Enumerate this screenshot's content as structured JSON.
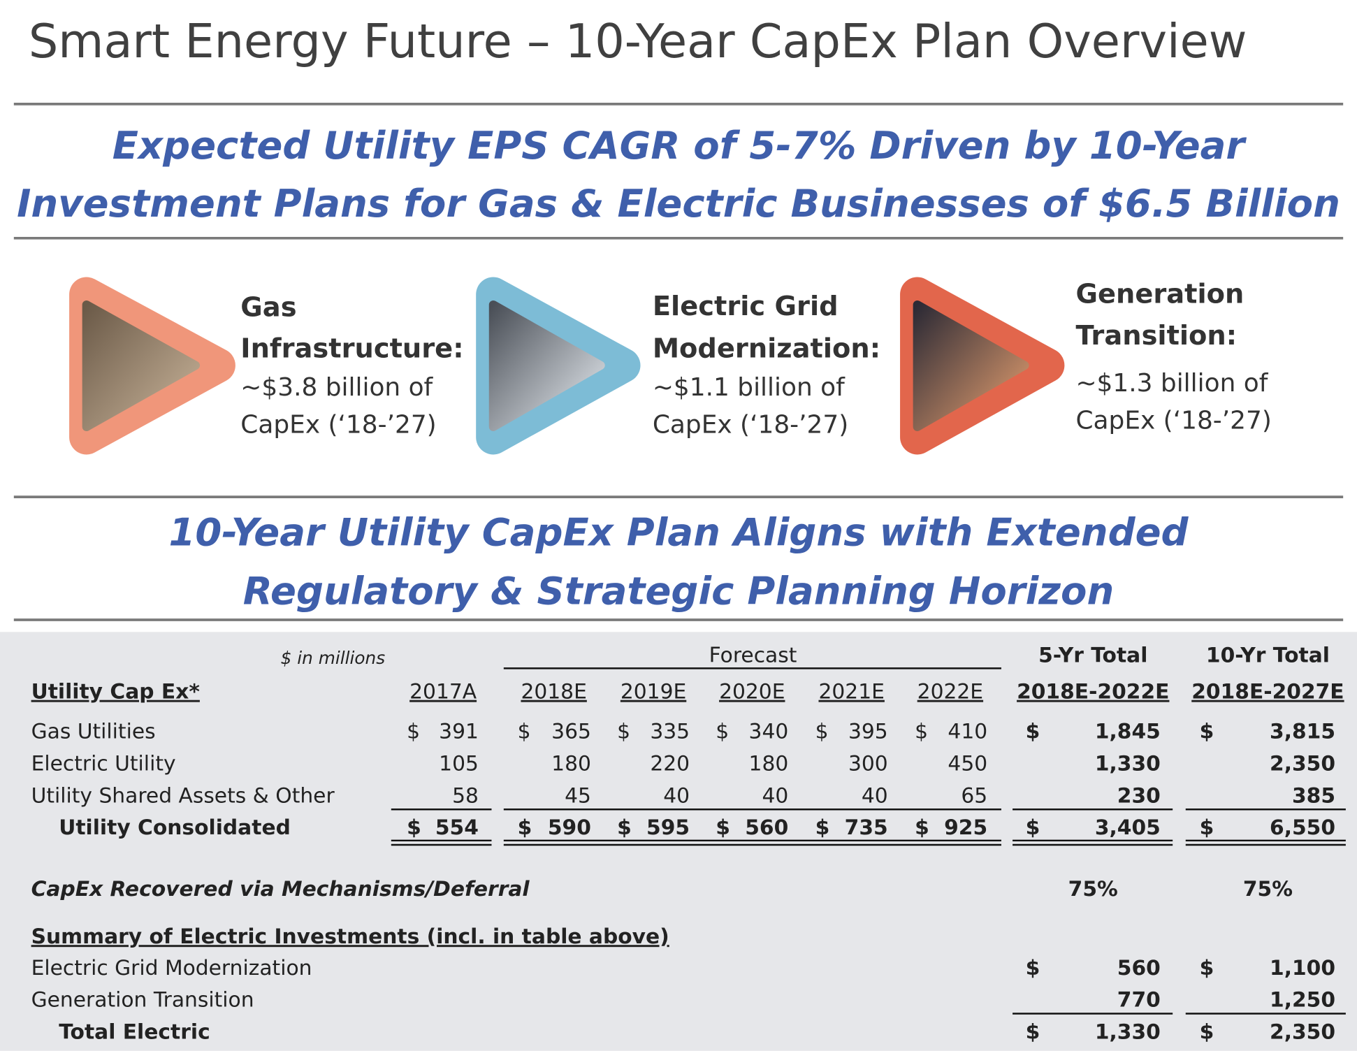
{
  "header": {
    "title": "Smart Energy Future – 10-Year CapEx Plan Overview"
  },
  "headline_1": [
    "Expected Utility EPS CAGR of 5-7% Driven by 10-Year",
    "Investment Plans for Gas & Electric Businesses of $6.5 Billion"
  ],
  "pillars": [
    {
      "heading": [
        "Gas",
        "Infrastructure:"
      ],
      "text": [
        "~$3.8 billion of",
        "CapEx (‘18-’27)"
      ]
    },
    {
      "heading": [
        "Electric Grid",
        "Modernization:"
      ],
      "text": [
        "~$1.1 billion of",
        "CapEx (‘18-’27)"
      ]
    },
    {
      "heading": [
        "Generation",
        "Transition:"
      ],
      "text": [
        "~$1.3 billion of",
        "CapEx (‘18-’27)"
      ]
    }
  ],
  "headline_2": [
    "10-Year Utility CapEx Plan Aligns with Extended",
    "Regulatory & Strategic Planning Horizon"
  ],
  "table": {
    "unit_note": "$ in millions",
    "forecast_label": "Forecast",
    "total_headers": [
      "5-Yr Total",
      "10-Yr Total"
    ],
    "row_header": "Utility Cap Ex*",
    "columns": [
      "2017A",
      "2018E",
      "2019E",
      "2020E",
      "2021E",
      "2022E",
      "2018E-2022E",
      "2018E-2027E"
    ],
    "rows": [
      {
        "label": "Gas Utilities",
        "cells": [
          [
            "$",
            "391"
          ],
          [
            "$",
            "365"
          ],
          [
            "$",
            "335"
          ],
          [
            "$",
            "340"
          ],
          [
            "$",
            "395"
          ],
          [
            "$",
            "410"
          ],
          [
            "$",
            "1,845"
          ],
          [
            "$",
            "3,815"
          ]
        ]
      },
      {
        "label": "Electric Utility",
        "cells": [
          "105",
          "180",
          "220",
          "180",
          "300",
          "450",
          "1,330",
          "2,350"
        ]
      },
      {
        "label": "Utility Shared Assets & Other",
        "cells": [
          "58",
          "45",
          "40",
          "40",
          "40",
          "65",
          "230",
          "385"
        ]
      },
      {
        "label": "Utility Consolidated",
        "cells": [
          [
            "$",
            "554"
          ],
          [
            "$",
            "590"
          ],
          [
            "$",
            "595"
          ],
          [
            "$",
            "560"
          ],
          [
            "$",
            "735"
          ],
          [
            "$",
            "925"
          ],
          [
            "$",
            "3,405"
          ],
          [
            "$",
            "6,550"
          ]
        ]
      }
    ]
  },
  "recovery": {
    "label": "CapEx Recovered via Mechanisms/Deferral",
    "values": [
      "75%",
      "75%"
    ]
  },
  "summary": {
    "title": "Summary of Electric Investments (incl. in table above)",
    "rows": [
      {
        "label": "Electric Grid Modernization",
        "cells": [
          [
            "$",
            "560"
          ],
          [
            "$",
            "1,100"
          ]
        ]
      },
      {
        "label": "Generation Transition",
        "cells": [
          "770",
          "1,250"
        ]
      },
      {
        "label": "Total Electric",
        "cells": [
          [
            "$",
            "1,330"
          ],
          [
            "$",
            "2,350"
          ]
        ]
      }
    ]
  }
}
